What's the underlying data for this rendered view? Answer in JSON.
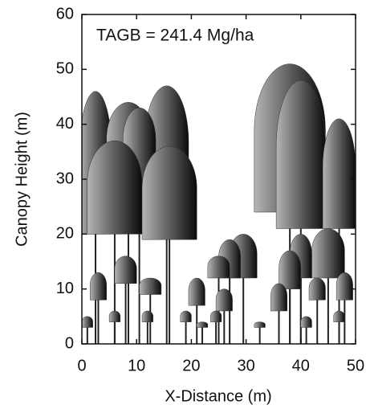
{
  "chart_data": {
    "type": "canopy",
    "annotation": "TAGB = 241.4 Mg/ha",
    "xlabel": "X-Distance (m)",
    "ylabel": "Canopy Height (m)",
    "xlim": [
      0,
      50
    ],
    "ylim": [
      0,
      60
    ],
    "xticks": [
      0,
      10,
      20,
      30,
      40,
      50
    ],
    "yticks": [
      0,
      10,
      20,
      30,
      40,
      50,
      60
    ],
    "color": "#222222",
    "trees": {
      "x": [
        38,
        15.5,
        2.5,
        40,
        8.5,
        47,
        10.5,
        6,
        16,
        29.5,
        45,
        27,
        40,
        25,
        38,
        8,
        48,
        3,
        12.5,
        43,
        21,
        36,
        26,
        47,
        1,
        12,
        19,
        24.5,
        6,
        41,
        22,
        32.5
      ],
      "top": [
        51,
        47,
        46,
        48,
        44,
        41,
        43,
        37,
        36,
        20,
        21,
        19,
        20,
        16,
        17,
        16,
        13,
        13,
        12,
        12,
        12,
        11,
        10,
        6,
        5,
        6,
        6,
        6,
        6,
        5,
        4,
        4
      ],
      "base": [
        24,
        24,
        20,
        21,
        29,
        21,
        30,
        20,
        19,
        12,
        12,
        12,
        12,
        12,
        10,
        11,
        8,
        8,
        9,
        8,
        7,
        6,
        6,
        4,
        3,
        4,
        4,
        4,
        4,
        3,
        3,
        3
      ],
      "width": [
        13,
        8,
        6,
        9,
        8,
        6,
        6,
        10,
        10,
        5,
        6,
        4,
        4,
        4,
        4,
        4,
        3,
        3,
        4,
        3,
        3,
        3,
        3,
        2,
        2,
        2,
        2,
        2,
        2,
        2,
        2,
        2
      ]
    }
  }
}
